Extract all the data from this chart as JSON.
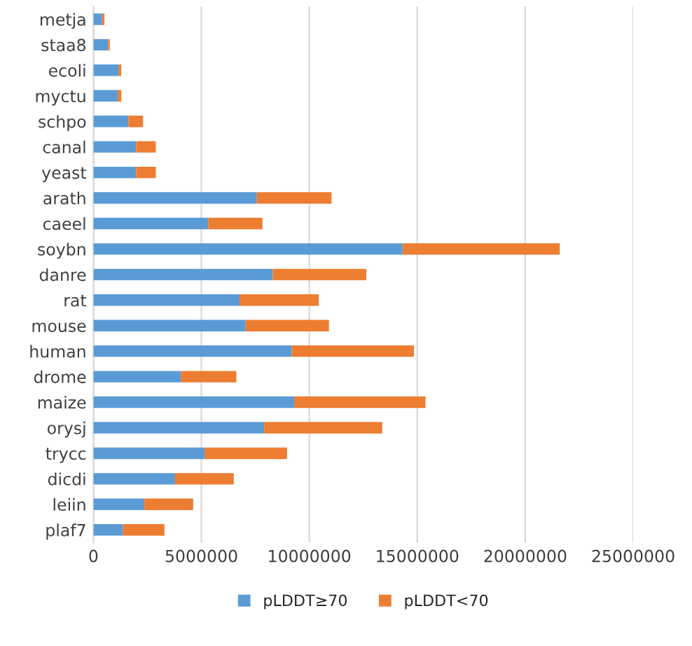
{
  "chart_data": {
    "type": "bar",
    "orientation": "horizontal",
    "stacked": true,
    "categories": [
      "metja",
      "staa8",
      "ecoli",
      "myctu",
      "schpo",
      "canal",
      "yeast",
      "arath",
      "caeel",
      "soybn",
      "danre",
      "rat",
      "mouse",
      "human",
      "drome",
      "maize",
      "orysj",
      "trycc",
      "dicdi",
      "leiin",
      "plaf7"
    ],
    "series": [
      {
        "name": "pLDDT≥70",
        "color": "#5b9bd5",
        "values": [
          400000,
          680000,
          1160000,
          1120000,
          1620000,
          1980000,
          1980000,
          7570000,
          5320000,
          14320000,
          8310000,
          6770000,
          7050000,
          9180000,
          4050000,
          9300000,
          7910000,
          5150000,
          3780000,
          2360000,
          1370000
        ]
      },
      {
        "name": "pLDDT<70",
        "color": "#ed7d31",
        "values": [
          110000,
          80000,
          130000,
          170000,
          680000,
          910000,
          910000,
          3460000,
          2510000,
          7280000,
          4330000,
          3670000,
          3860000,
          5670000,
          2570000,
          6080000,
          5470000,
          3820000,
          2720000,
          2260000,
          1920000
        ]
      }
    ],
    "xlim": [
      0,
      25000000
    ],
    "xticks": [
      0,
      5000000,
      10000000,
      15000000,
      20000000,
      25000000
    ],
    "grid": "x",
    "legend": "bottom"
  }
}
